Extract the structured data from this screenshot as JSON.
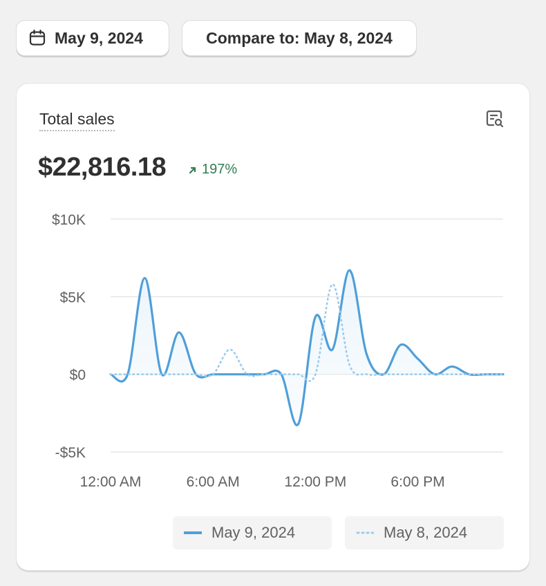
{
  "date_picker": {
    "label": "May 9, 2024",
    "icon": "calendar-icon"
  },
  "compare_picker": {
    "label": "Compare to: May 8, 2024"
  },
  "card": {
    "title": "Total sales",
    "icon": "report-search-icon",
    "value": "$22,816.18",
    "change": "197%",
    "change_direction": "up",
    "change_color": "#2f7d50"
  },
  "chart_data": {
    "type": "line",
    "ylim": [
      -5000,
      10000
    ],
    "y_ticks": [
      {
        "value": 10000,
        "label": "$10K"
      },
      {
        "value": 5000,
        "label": "$5K"
      },
      {
        "value": 0,
        "label": "$0"
      },
      {
        "value": -5000,
        "label": "-$5K"
      }
    ],
    "xlim": [
      0,
      23
    ],
    "x_ticks": [
      {
        "value": 0,
        "label": "12:00 AM"
      },
      {
        "value": 6,
        "label": "6:00 AM"
      },
      {
        "value": 12,
        "label": "12:00 PM"
      },
      {
        "value": 18,
        "label": "6:00 PM"
      }
    ],
    "x": [
      0,
      1,
      2,
      3,
      4,
      5,
      6,
      7,
      8,
      9,
      10,
      11,
      12,
      13,
      14,
      15,
      16,
      17,
      18,
      19,
      20,
      21,
      22,
      23
    ],
    "series": [
      {
        "name": "May 9, 2024",
        "style": "solid",
        "color": "#4f9fd9",
        "values": [
          0,
          0,
          6200,
          0,
          2700,
          0,
          0,
          0,
          0,
          0,
          0,
          -3200,
          3700,
          1600,
          6700,
          1300,
          0,
          1900,
          1000,
          0,
          500,
          0,
          0,
          0
        ]
      },
      {
        "name": "May 8, 2024",
        "style": "dotted",
        "color": "#9ccbec",
        "values": [
          0,
          0,
          0,
          0,
          0,
          0,
          0,
          1600,
          0,
          0,
          0,
          0,
          0,
          5800,
          600,
          0,
          0,
          0,
          0,
          0,
          0,
          0,
          0,
          0
        ]
      }
    ],
    "grid": true,
    "legend": "bottom-right"
  }
}
